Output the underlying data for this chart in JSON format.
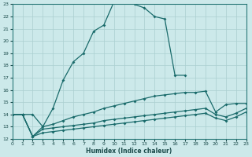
{
  "xlabel": "Humidex (Indice chaleur)",
  "xlim": [
    0,
    23
  ],
  "ylim": [
    12,
    23
  ],
  "xticks": [
    0,
    1,
    2,
    3,
    4,
    5,
    6,
    7,
    8,
    9,
    10,
    11,
    12,
    13,
    14,
    15,
    16,
    17,
    18,
    19,
    20,
    21,
    22,
    23
  ],
  "yticks": [
    12,
    13,
    14,
    15,
    16,
    17,
    18,
    19,
    20,
    21,
    22,
    23
  ],
  "bg_color": "#cce9ea",
  "grid_color": "#aacfd0",
  "line_color": "#1a6b6b",
  "line1_x": [
    0,
    1,
    2,
    3,
    4,
    5,
    6,
    7,
    8,
    9,
    10,
    11,
    12,
    13,
    14,
    15,
    16,
    17
  ],
  "line1_y": [
    14,
    14,
    14,
    13,
    14.5,
    16.8,
    18.3,
    19.0,
    20.8,
    21.3,
    23.2,
    23.5,
    23.0,
    22.7,
    22.0,
    21.8,
    17.2,
    17.2
  ],
  "line2_x": [
    0,
    1,
    2,
    3,
    4,
    5,
    6,
    7,
    8,
    9,
    10,
    11,
    12,
    13,
    14,
    15,
    16,
    17,
    18,
    19,
    20,
    21,
    22,
    23
  ],
  "line2_y": [
    14,
    14,
    12.2,
    13.0,
    13.2,
    13.5,
    13.8,
    14.0,
    14.2,
    14.5,
    14.7,
    14.9,
    15.1,
    15.3,
    15.5,
    15.6,
    15.7,
    15.8,
    15.8,
    15.9,
    14.2,
    14.8,
    14.9,
    14.9
  ],
  "line3_x": [
    0,
    1,
    2,
    3,
    4,
    5,
    6,
    7,
    8,
    9,
    10,
    11,
    12,
    13,
    14,
    15,
    16,
    17,
    18,
    19,
    20,
    21,
    22,
    23
  ],
  "line3_y": [
    14,
    14,
    12.2,
    12.8,
    12.9,
    13.0,
    13.1,
    13.2,
    13.3,
    13.5,
    13.6,
    13.7,
    13.8,
    13.9,
    14.0,
    14.1,
    14.2,
    14.3,
    14.4,
    14.5,
    14.0,
    13.8,
    14.1,
    14.5
  ],
  "line4_x": [
    0,
    1,
    2,
    3,
    4,
    5,
    6,
    7,
    8,
    9,
    10,
    11,
    12,
    13,
    14,
    15,
    16,
    17,
    18,
    19,
    20,
    21,
    22,
    23
  ],
  "line4_y": [
    14,
    14,
    12.2,
    12.5,
    12.6,
    12.7,
    12.8,
    12.9,
    13.0,
    13.1,
    13.2,
    13.3,
    13.4,
    13.5,
    13.6,
    13.7,
    13.8,
    13.9,
    14.0,
    14.1,
    13.7,
    13.5,
    13.8,
    14.2
  ]
}
